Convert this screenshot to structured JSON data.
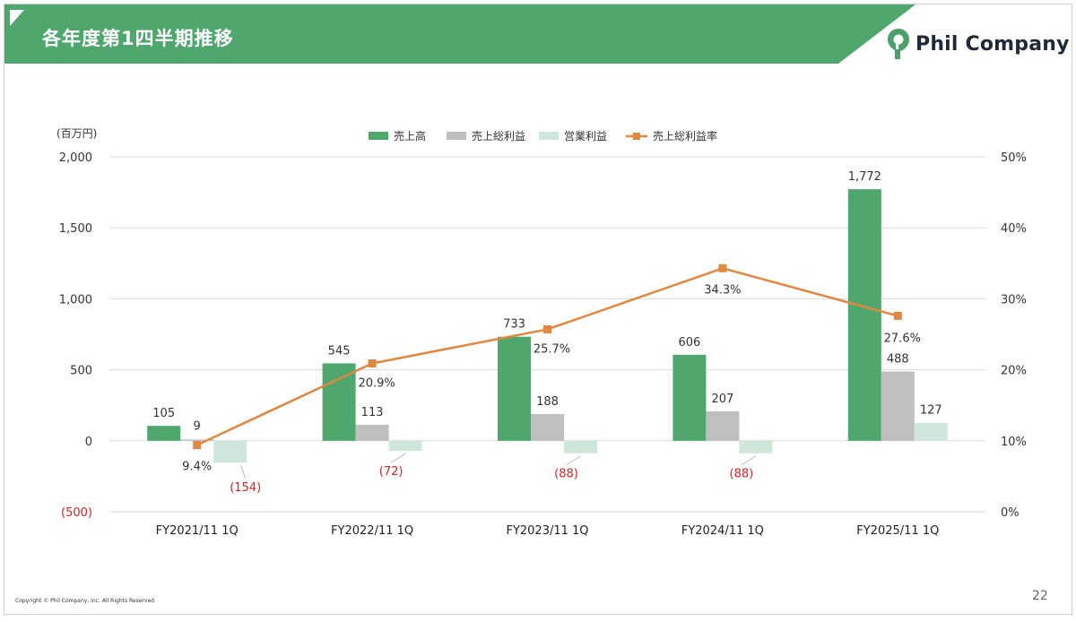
{
  "header": {
    "title": "各年度第1四半期推移",
    "brand_name": "Phil Company",
    "brand_color": "#4aa26a"
  },
  "footer": {
    "copyright": "Copyright © Phil Company, Inc.  All Rights Reserved",
    "page_number": "22"
  },
  "colors": {
    "header_green": "#4fa76d",
    "sales": "#4fa76d",
    "gross_profit": "#bfbfbf",
    "operating_profit": "#cfe6dc",
    "margin_line": "#e2873f",
    "negative_label": "#e02020"
  },
  "chart_data": {
    "type": "bar",
    "unit_label": "(百万円)",
    "categories": [
      "FY2021/11  1Q",
      "FY2022/11  1Q",
      "FY2023/11  1Q",
      "FY2024/11  1Q",
      "FY2025/11  1Q"
    ],
    "series": [
      {
        "name": "売上高",
        "type": "bar",
        "values": [
          105,
          545,
          733,
          606,
          1772
        ],
        "labels": [
          "105",
          "545",
          "733",
          "606",
          "1,772"
        ]
      },
      {
        "name": "売上総利益",
        "type": "bar",
        "values": [
          9,
          113,
          188,
          207,
          488
        ],
        "labels": [
          "9",
          "113",
          "188",
          "207",
          "488"
        ]
      },
      {
        "name": "営業利益",
        "type": "bar",
        "values": [
          -154,
          -72,
          -88,
          -88,
          127
        ],
        "labels": [
          "(154)",
          "(72)",
          "(88)",
          "(88)",
          "127"
        ]
      },
      {
        "name": "売上総利益率",
        "type": "line",
        "axis": "right",
        "values": [
          9.4,
          20.9,
          25.7,
          34.3,
          27.6
        ],
        "labels": [
          "9.4%",
          "20.9%",
          "25.7%",
          "34.3%",
          "27.6%"
        ]
      }
    ],
    "y_left": {
      "min": -500,
      "max": 2000,
      "ticks": [
        2000,
        1500,
        1000,
        500,
        0,
        -500
      ],
      "tick_labels": [
        "2,000",
        "1,500",
        "1,000",
        "500",
        "0",
        "(500)"
      ]
    },
    "y_right": {
      "min": 0,
      "max": 50,
      "ticks": [
        50,
        40,
        30,
        20,
        10,
        0
      ],
      "tick_labels": [
        "50%",
        "40%",
        "30%",
        "20%",
        "10%",
        "0%"
      ]
    },
    "grid": true,
    "legend_position": "top"
  }
}
